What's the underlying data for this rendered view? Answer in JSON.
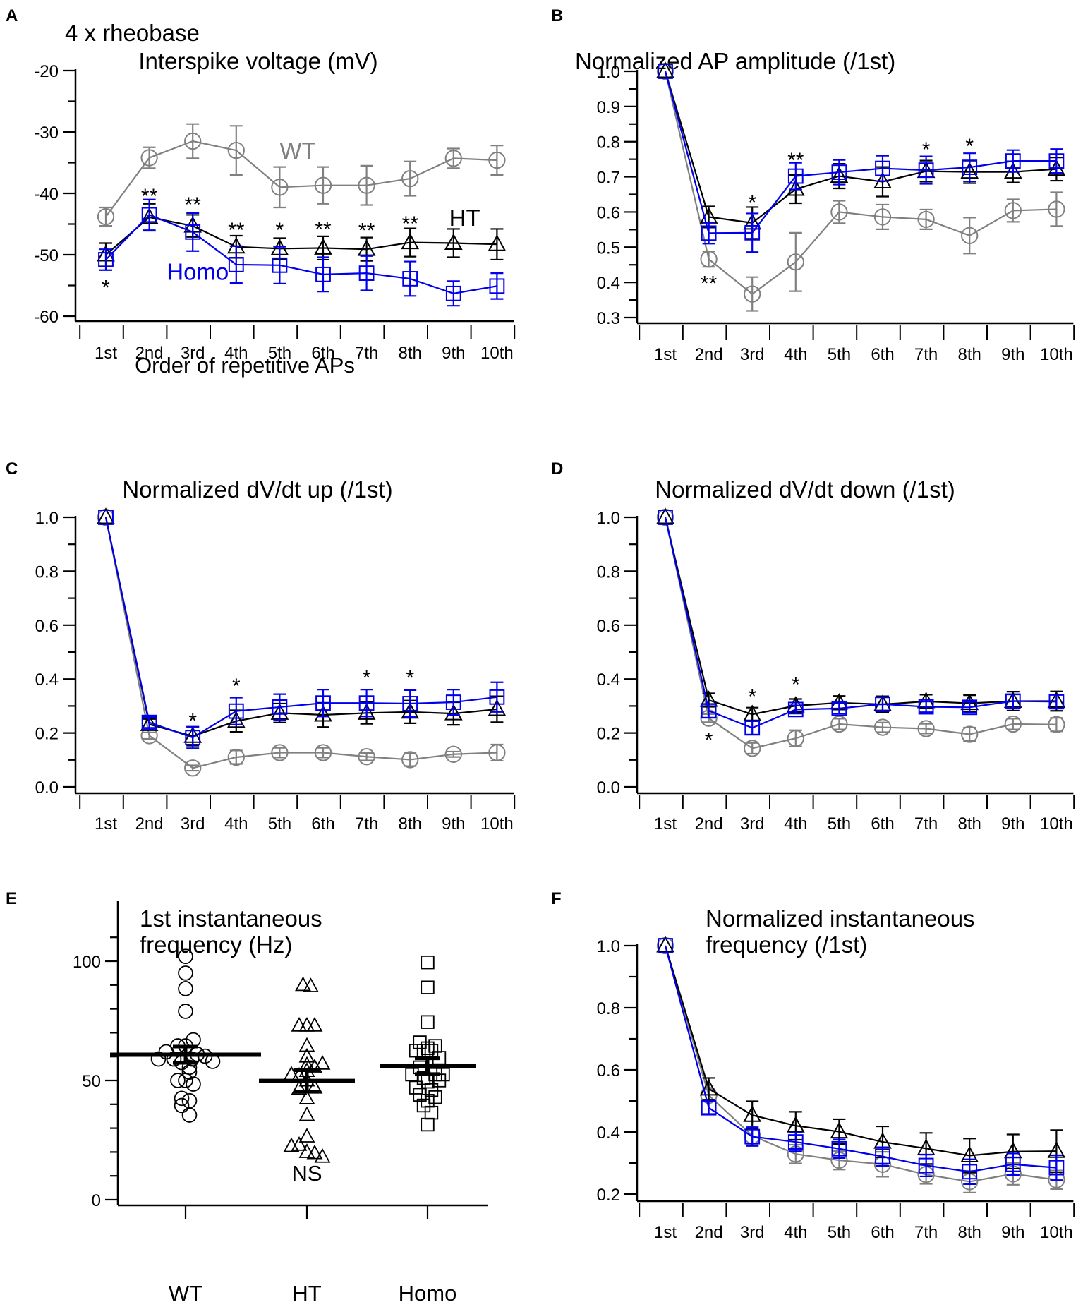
{
  "figure": {
    "series_styles": {
      "WT": {
        "color": "#808080",
        "marker": "circle"
      },
      "HT": {
        "color": "#000000",
        "marker": "triangle"
      },
      "Homo": {
        "color": "#0000ee",
        "marker": "square"
      }
    }
  },
  "chart_data": [
    {
      "panel": "A",
      "type": "line",
      "supertitle": "4 x rheobase",
      "title": "Interspike voltage (mV)",
      "xlabel": "Order of repetitive APs",
      "ylabel": "",
      "categories": [
        "1st",
        "2nd",
        "3rd",
        "4th",
        "5th",
        "6th",
        "7th",
        "8th",
        "9th",
        "10th"
      ],
      "ylim": [
        -60,
        -20
      ],
      "yticks": [
        -60,
        -50,
        -40,
        -30,
        -20
      ],
      "ytick_labels": [
        "-60",
        "-50",
        "-40",
        "-30",
        "-20"
      ],
      "yminor_step": 5,
      "series": [
        {
          "name": "WT",
          "values": [
            -43.8,
            -34.2,
            -31.5,
            -33.0,
            -39.0,
            -38.7,
            -38.7,
            -37.6,
            -34.3,
            -34.6
          ],
          "errors": [
            1.5,
            1.7,
            2.8,
            4.0,
            3.3,
            3.0,
            3.2,
            2.8,
            1.6,
            2.4
          ]
        },
        {
          "name": "HT",
          "values": [
            -50.0,
            -43.9,
            -45.3,
            -48.7,
            -49.0,
            -48.9,
            -49.1,
            -48.0,
            -48.1,
            -48.3
          ],
          "errors": [
            1.9,
            2.2,
            1.8,
            1.8,
            1.7,
            1.9,
            1.9,
            2.3,
            2.3,
            2.5
          ]
        },
        {
          "name": "Homo",
          "values": [
            -50.8,
            -43.5,
            -46.3,
            -51.6,
            -51.7,
            -53.2,
            -53.0,
            -53.9,
            -56.3,
            -55.1
          ],
          "errors": [
            1.7,
            2.5,
            3.1,
            3.0,
            3.0,
            2.8,
            2.8,
            2.8,
            2.0,
            2.1
          ]
        }
      ],
      "annotations": [
        {
          "text": "*",
          "x": "1st",
          "y": -54.9
        },
        {
          "text": "**",
          "x": "2nd",
          "y": -40.0
        },
        {
          "text": "**",
          "x": "3rd",
          "y": -41.4
        },
        {
          "text": "**",
          "x": "4th",
          "y": -45.5
        },
        {
          "text": "*",
          "x": "5th",
          "y": -45.5
        },
        {
          "text": "**",
          "x": "6th",
          "y": -45.4
        },
        {
          "text": "**",
          "x": "7th",
          "y": -45.6
        },
        {
          "text": "**",
          "x": "8th",
          "y": -44.5
        }
      ],
      "series_labels": [
        {
          "text": "WT",
          "series": "WT",
          "x_at": 5.0,
          "y": -33.0
        },
        {
          "text": "HT",
          "series": "HT",
          "x_at": 8.9,
          "y": -43.9
        },
        {
          "text": "Homo",
          "series": "Homo",
          "x_at": 2.4,
          "y": -52.7
        }
      ]
    },
    {
      "panel": "B",
      "type": "line",
      "title": "Normalized AP amplitude (/1st)",
      "xlabel": "",
      "ylabel": "",
      "categories": [
        "1st",
        "2nd",
        "3rd",
        "4th",
        "5th",
        "6th",
        "7th",
        "8th",
        "9th",
        "10th"
      ],
      "ylim": [
        0.3,
        1.0
      ],
      "yticks": [
        0.3,
        0.4,
        0.5,
        0.6,
        0.7,
        0.8,
        0.9,
        1.0
      ],
      "ytick_labels": [
        "0.3",
        "0.4",
        "0.5",
        "0.6",
        "0.7",
        "0.8",
        "0.9",
        "1.0"
      ],
      "yminor_step": 0.05,
      "series": [
        {
          "name": "WT",
          "values": [
            1.0,
            0.466,
            0.367,
            0.458,
            0.6,
            0.586,
            0.579,
            0.533,
            0.604,
            0.608
          ],
          "errors": [
            0,
            0.022,
            0.048,
            0.083,
            0.032,
            0.035,
            0.028,
            0.051,
            0.032,
            0.048
          ]
        },
        {
          "name": "HT",
          "values": [
            1.0,
            0.586,
            0.569,
            0.665,
            0.702,
            0.686,
            0.716,
            0.714,
            0.714,
            0.722
          ],
          "errors": [
            0,
            0.03,
            0.045,
            0.04,
            0.035,
            0.042,
            0.03,
            0.032,
            0.03,
            0.033
          ]
        },
        {
          "name": "Homo",
          "values": [
            1.0,
            0.54,
            0.541,
            0.702,
            0.713,
            0.724,
            0.719,
            0.727,
            0.745,
            0.745
          ],
          "errors": [
            0,
            0.03,
            0.055,
            0.038,
            0.035,
            0.036,
            0.039,
            0.04,
            0.031,
            0.034
          ]
        }
      ],
      "annotations": [
        {
          "text": "**",
          "x": "2nd",
          "y": 0.405
        },
        {
          "text": "*",
          "x": "3rd",
          "y": 0.635
        },
        {
          "text": "**",
          "x": "4th",
          "y": 0.755
        },
        {
          "text": "*",
          "x": "7th",
          "y": 0.785
        },
        {
          "text": "*",
          "x": "8th",
          "y": 0.795
        }
      ]
    },
    {
      "panel": "C",
      "type": "line",
      "title": "Normalized dV/dt up (/1st)",
      "xlabel": "",
      "ylabel": "",
      "categories": [
        "1st",
        "2nd",
        "3rd",
        "4th",
        "5th",
        "6th",
        "7th",
        "8th",
        "9th",
        "10th"
      ],
      "ylim": [
        0.0,
        1.0
      ],
      "yticks": [
        0.0,
        0.2,
        0.4,
        0.6,
        0.8,
        1.0
      ],
      "ytick_labels": [
        "0.0",
        "0.2",
        "0.4",
        "0.6",
        "0.8",
        "1.0"
      ],
      "yminor_step": 0.1,
      "series": [
        {
          "name": "WT",
          "values": [
            1.0,
            0.19,
            0.07,
            0.11,
            0.127,
            0.127,
            0.112,
            0.101,
            0.121,
            0.127
          ],
          "errors": [
            0,
            0.012,
            0.01,
            0.025,
            0.018,
            0.018,
            0.014,
            0.024,
            0.01,
            0.03
          ]
        },
        {
          "name": "HT",
          "values": [
            1.0,
            0.232,
            0.188,
            0.244,
            0.274,
            0.267,
            0.274,
            0.278,
            0.272,
            0.288
          ],
          "errors": [
            0,
            0.02,
            0.035,
            0.04,
            0.035,
            0.045,
            0.04,
            0.042,
            0.042,
            0.048
          ]
        },
        {
          "name": "Homo",
          "values": [
            1.0,
            0.239,
            0.183,
            0.281,
            0.296,
            0.311,
            0.311,
            0.309,
            0.314,
            0.333
          ],
          "errors": [
            0,
            0.02,
            0.04,
            0.05,
            0.048,
            0.05,
            0.05,
            0.05,
            0.047,
            0.055
          ]
        }
      ],
      "annotations": [
        {
          "text": "*",
          "x": "3rd",
          "y": 0.255
        },
        {
          "text": "*",
          "x": "4th",
          "y": 0.385
        },
        {
          "text": "*",
          "x": "7th",
          "y": 0.415
        },
        {
          "text": "*",
          "x": "8th",
          "y": 0.415
        }
      ]
    },
    {
      "panel": "D",
      "type": "line",
      "title": "Normalized dV/dt down (/1st)",
      "xlabel": "",
      "ylabel": "",
      "categories": [
        "1st",
        "2nd",
        "3rd",
        "4th",
        "5th",
        "6th",
        "7th",
        "8th",
        "9th",
        "10th"
      ],
      "ylim": [
        0.0,
        1.0
      ],
      "yticks": [
        0.0,
        0.2,
        0.4,
        0.6,
        0.8,
        1.0
      ],
      "ytick_labels": [
        "0.0",
        "0.2",
        "0.4",
        "0.6",
        "0.8",
        "1.0"
      ],
      "yminor_step": 0.1,
      "series": [
        {
          "name": "WT",
          "values": [
            1.0,
            0.255,
            0.143,
            0.18,
            0.233,
            0.221,
            0.216,
            0.195,
            0.233,
            0.231
          ],
          "errors": [
            0,
            0.015,
            0.02,
            0.03,
            0.02,
            0.018,
            0.018,
            0.025,
            0.02,
            0.025
          ]
        },
        {
          "name": "HT",
          "values": [
            1.0,
            0.322,
            0.269,
            0.301,
            0.312,
            0.306,
            0.317,
            0.31,
            0.318,
            0.318
          ],
          "errors": [
            0,
            0.025,
            0.025,
            0.025,
            0.025,
            0.03,
            0.025,
            0.03,
            0.035,
            0.036
          ]
        },
        {
          "name": "Homo",
          "values": [
            1.0,
            0.282,
            0.219,
            0.287,
            0.291,
            0.307,
            0.297,
            0.295,
            0.318,
            0.316
          ],
          "errors": [
            0,
            0.025,
            0.025,
            0.015,
            0.02,
            0.025,
            0.02,
            0.02,
            0.025,
            0.025
          ]
        }
      ],
      "annotations": [
        {
          "text": "*",
          "x": "2nd",
          "y": 0.185
        },
        {
          "text": "*",
          "x": "3rd",
          "y": 0.345
        },
        {
          "text": "*",
          "x": "4th",
          "y": 0.39
        }
      ]
    },
    {
      "panel": "E",
      "type": "scatter",
      "title": "1st instantaneous frequency (Hz)",
      "title_lines": [
        "1st instantaneous",
        "frequency (Hz)"
      ],
      "xlabel": "",
      "ylabel": "",
      "categories": [
        "WT",
        "HT",
        "Homo"
      ],
      "ylim": [
        0,
        110
      ],
      "yticks": [
        0,
        50,
        100
      ],
      "ytick_labels": [
        "0",
        "50",
        "100"
      ],
      "yminor_step": 10,
      "groups": [
        {
          "name": "WT",
          "marker": "circle",
          "mean": 60.8,
          "sem": 3.4,
          "points": [
            {
              "y": 102,
              "dx": 0
            },
            {
              "y": 95,
              "dx": 0
            },
            {
              "y": 88.5,
              "dx": 0
            },
            {
              "y": 79,
              "dx": 0
            },
            {
              "y": 67,
              "dx": 1
            },
            {
              "y": 64.5,
              "dx": -1
            },
            {
              "y": 64.5,
              "dx": 0
            },
            {
              "y": 62,
              "dx": -2.5
            },
            {
              "y": 61,
              "dx": 1.5
            },
            {
              "y": 60.2,
              "dx": 2.5
            },
            {
              "y": 59,
              "dx": -3.5
            },
            {
              "y": 59,
              "dx": -1.5
            },
            {
              "y": 59,
              "dx": 0.8
            },
            {
              "y": 58,
              "dx": 3.5
            },
            {
              "y": 57.5,
              "dx": -0.5
            },
            {
              "y": 55.5,
              "dx": 0.5
            },
            {
              "y": 53.5,
              "dx": 0.5
            },
            {
              "y": 50,
              "dx": -1
            },
            {
              "y": 50,
              "dx": 0
            },
            {
              "y": 48.5,
              "dx": 1
            },
            {
              "y": 42.5,
              "dx": -0.5
            },
            {
              "y": 41.5,
              "dx": 0.5
            },
            {
              "y": 39.5,
              "dx": -0.5
            },
            {
              "y": 35.5,
              "dx": 0.5
            }
          ]
        },
        {
          "name": "HT",
          "marker": "triangle",
          "mean": 49.8,
          "sem": 4.5,
          "points": [
            {
              "y": 90,
              "dx": -0.5
            },
            {
              "y": 89.5,
              "dx": 0.5
            },
            {
              "y": 73,
              "dx": -1
            },
            {
              "y": 73,
              "dx": 0
            },
            {
              "y": 73,
              "dx": 1
            },
            {
              "y": 64.5,
              "dx": 0
            },
            {
              "y": 60,
              "dx": 0
            },
            {
              "y": 56.5,
              "dx": 0
            },
            {
              "y": 57,
              "dx": 2
            },
            {
              "y": 55.5,
              "dx": 1
            },
            {
              "y": 54,
              "dx": 0
            },
            {
              "y": 52.5,
              "dx": -2
            },
            {
              "y": 52,
              "dx": -1
            },
            {
              "y": 50,
              "dx": 0
            },
            {
              "y": 47,
              "dx": 1
            },
            {
              "y": 46.5,
              "dx": -1
            },
            {
              "y": 42.5,
              "dx": 0
            },
            {
              "y": 35.5,
              "dx": 0
            },
            {
              "y": 26.5,
              "dx": 0
            },
            {
              "y": 22.5,
              "dx": -2
            },
            {
              "y": 23,
              "dx": -1
            },
            {
              "y": 20,
              "dx": 0
            },
            {
              "y": 19.5,
              "dx": 1
            },
            {
              "y": 18,
              "dx": 2
            }
          ]
        },
        {
          "name": "Homo",
          "marker": "square",
          "mean": 56.0,
          "sem": 3.3,
          "points": [
            {
              "y": 99.5,
              "dx": 0
            },
            {
              "y": 89,
              "dx": 0
            },
            {
              "y": 74.5,
              "dx": 0
            },
            {
              "y": 66,
              "dx": -1
            },
            {
              "y": 63.5,
              "dx": 0
            },
            {
              "y": 64.5,
              "dx": 1
            },
            {
              "y": 62.5,
              "dx": 0.5
            },
            {
              "y": 62.5,
              "dx": -1.5
            },
            {
              "y": 62.5,
              "dx": -0.5
            },
            {
              "y": 59.5,
              "dx": 1.5
            },
            {
              "y": 55.5,
              "dx": -1
            },
            {
              "y": 52.5,
              "dx": -2
            },
            {
              "y": 52.5,
              "dx": 2
            },
            {
              "y": 52.5,
              "dx": 1
            },
            {
              "y": 51,
              "dx": -0.5
            },
            {
              "y": 50,
              "dx": 1.5
            },
            {
              "y": 49.5,
              "dx": 0
            },
            {
              "y": 47,
              "dx": -1.5
            },
            {
              "y": 46,
              "dx": 0.5
            },
            {
              "y": 44,
              "dx": -1
            },
            {
              "y": 43,
              "dx": 1
            },
            {
              "y": 41.5,
              "dx": 0
            },
            {
              "y": 39.5,
              "dx": -0.5
            },
            {
              "y": 36.5,
              "dx": 0.5
            },
            {
              "y": 31.5,
              "dx": 0
            }
          ]
        }
      ],
      "annotations": [
        {
          "text": "NS",
          "x": "HT",
          "y": 11.5
        }
      ]
    },
    {
      "panel": "F",
      "type": "line",
      "title": "Normalized instantaneous frequency (/1st)",
      "title_lines": [
        "Normalized instantaneous",
        "frequency (/1st)"
      ],
      "xlabel": "",
      "ylabel": "",
      "categories": [
        "1st",
        "2nd",
        "3rd",
        "4th",
        "5th",
        "6th",
        "7th",
        "8th",
        "9th",
        "10th"
      ],
      "ylim": [
        0.2,
        1.0
      ],
      "yticks": [
        0.2,
        0.4,
        0.6,
        0.8,
        1.0
      ],
      "ytick_labels": [
        "0.2",
        "0.4",
        "0.6",
        "0.8",
        "1.0"
      ],
      "yminor_step": 0.1,
      "series": [
        {
          "name": "WT",
          "values": [
            1.0,
            0.518,
            0.388,
            0.329,
            0.309,
            0.296,
            0.263,
            0.24,
            0.265,
            0.246
          ],
          "errors": [
            0,
            0.02,
            0.03,
            0.03,
            0.03,
            0.04,
            0.03,
            0.035,
            0.035,
            0.03
          ]
        },
        {
          "name": "HT",
          "values": [
            1.0,
            0.539,
            0.454,
            0.42,
            0.401,
            0.368,
            0.347,
            0.324,
            0.337,
            0.338
          ],
          "errors": [
            0,
            0.035,
            0.045,
            0.045,
            0.04,
            0.05,
            0.05,
            0.055,
            0.055,
            0.068
          ]
        },
        {
          "name": "Homo",
          "values": [
            1.0,
            0.478,
            0.385,
            0.368,
            0.346,
            0.321,
            0.292,
            0.272,
            0.296,
            0.285
          ],
          "errors": [
            0,
            0.02,
            0.03,
            0.03,
            0.03,
            0.03,
            0.035,
            0.04,
            0.035,
            0.04
          ]
        }
      ],
      "annotations": []
    }
  ]
}
